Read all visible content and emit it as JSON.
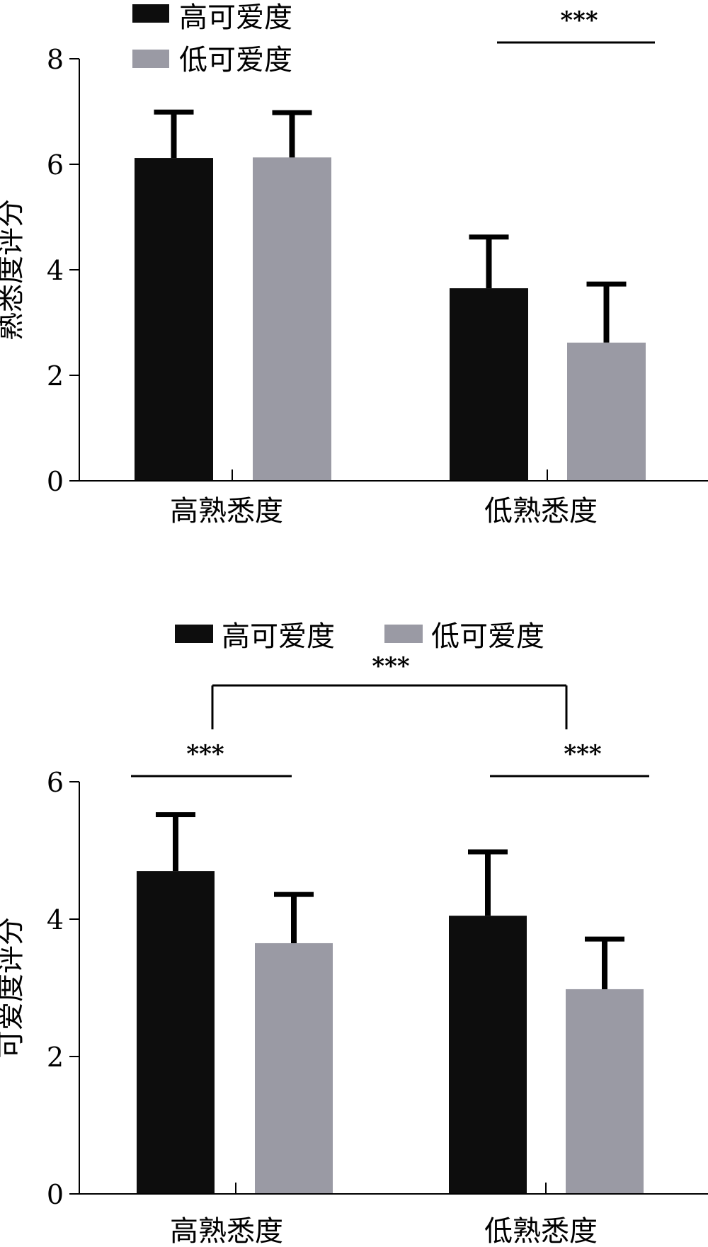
{
  "colors": {
    "high_likability": "#0d0d0d",
    "low_likability": "#9a9aa4",
    "axis": "#000000"
  },
  "chart_data": [
    {
      "type": "bar",
      "title": "",
      "xlabel": "",
      "ylabel": "熟悉度评分",
      "ylim": [
        0,
        8
      ],
      "yticks": [
        "0",
        "2",
        "4",
        "6",
        "8"
      ],
      "categories": [
        "高熟悉度",
        "低熟悉度"
      ],
      "series": [
        {
          "name": "高可爱度",
          "values": [
            6.12,
            3.65
          ],
          "errors": [
            0.87,
            0.97
          ]
        },
        {
          "name": "低可爱度",
          "values": [
            6.13,
            2.62
          ],
          "errors": [
            0.85,
            1.11
          ]
        }
      ],
      "legend_position": "top-left",
      "significance": [
        {
          "label": "***",
          "between": "低熟悉度: 高可爱度 vs 低可爱度"
        }
      ]
    },
    {
      "type": "bar",
      "title": "",
      "xlabel": "",
      "ylabel": "可爱度评分",
      "ylim": [
        0,
        6
      ],
      "yticks": [
        "0",
        "2",
        "4",
        "6"
      ],
      "categories": [
        "高熟悉度",
        "低熟悉度"
      ],
      "series": [
        {
          "name": "高可爱度",
          "values": [
            4.7,
            4.05
          ],
          "errors": [
            0.82,
            0.93
          ]
        },
        {
          "name": "低可爱度",
          "values": [
            3.65,
            2.98
          ],
          "errors": [
            0.71,
            0.73
          ]
        }
      ],
      "legend_position": "top",
      "significance": [
        {
          "label": "***",
          "between": "高熟悉度: 高可爱度 vs 低可爱度"
        },
        {
          "label": "***",
          "between": "低熟悉度: 高可爱度 vs 低可爱度"
        },
        {
          "label": "***",
          "between": "高熟悉度 vs 低熟悉度"
        }
      ]
    }
  ]
}
